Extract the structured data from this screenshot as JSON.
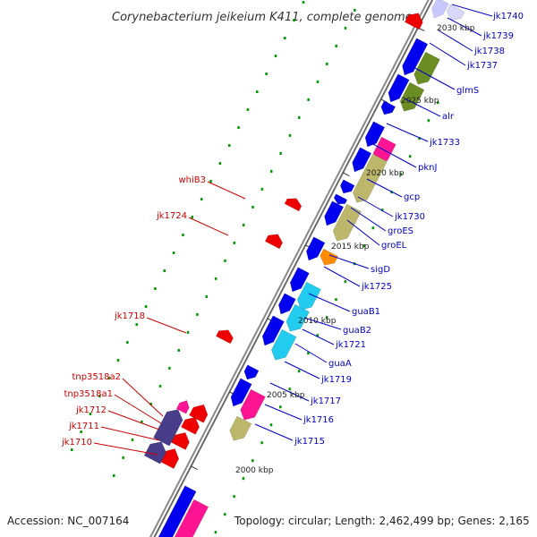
{
  "title": "Corynebacterium jeikeium K411, complete genome",
  "footer": {
    "accession": "Accession: NC_007164",
    "topology": "Topology: circular; Length: 2,462,499 bp; Genes: 2,165"
  },
  "colors": {
    "plus_strand_label": "#0000cc",
    "minus_strand_label": "#cc0000",
    "backbone": "#888888",
    "gc_dots": "#009900",
    "gene_blue": "#0000ee",
    "gene_red": "#ee0000",
    "gene_olive": "#6b8e23",
    "gene_khaki": "#bdb76b",
    "gene_cyan": "#22ccee",
    "gene_orange": "#ff8c00",
    "gene_magenta": "#ff1493",
    "gene_purple": "#483d8b"
  },
  "position_labels": [
    "2030 kbp",
    "2025 kbp",
    "2020 kbp",
    "2015 kbp",
    "2010 kbp",
    "2005 kbp",
    "2000 kbp"
  ],
  "plus_labels": [
    "jk1740",
    "jk1739",
    "jk1738",
    "jk1737",
    "glmS",
    "alr",
    "jk1733",
    "pknJ",
    "gcp",
    "jk1730",
    "groES",
    "groEL",
    "sigD",
    "jk1725",
    "guaB1",
    "guaB2",
    "jk1721",
    "guaA",
    "jk1719",
    "jk1717",
    "jk1716",
    "jk1715"
  ],
  "minus_labels": [
    "whiB3",
    "jk1724",
    "jk1718",
    "tnp3518a2",
    "tnp3518a1",
    "jk1712",
    "jk1711",
    "jk1710"
  ]
}
